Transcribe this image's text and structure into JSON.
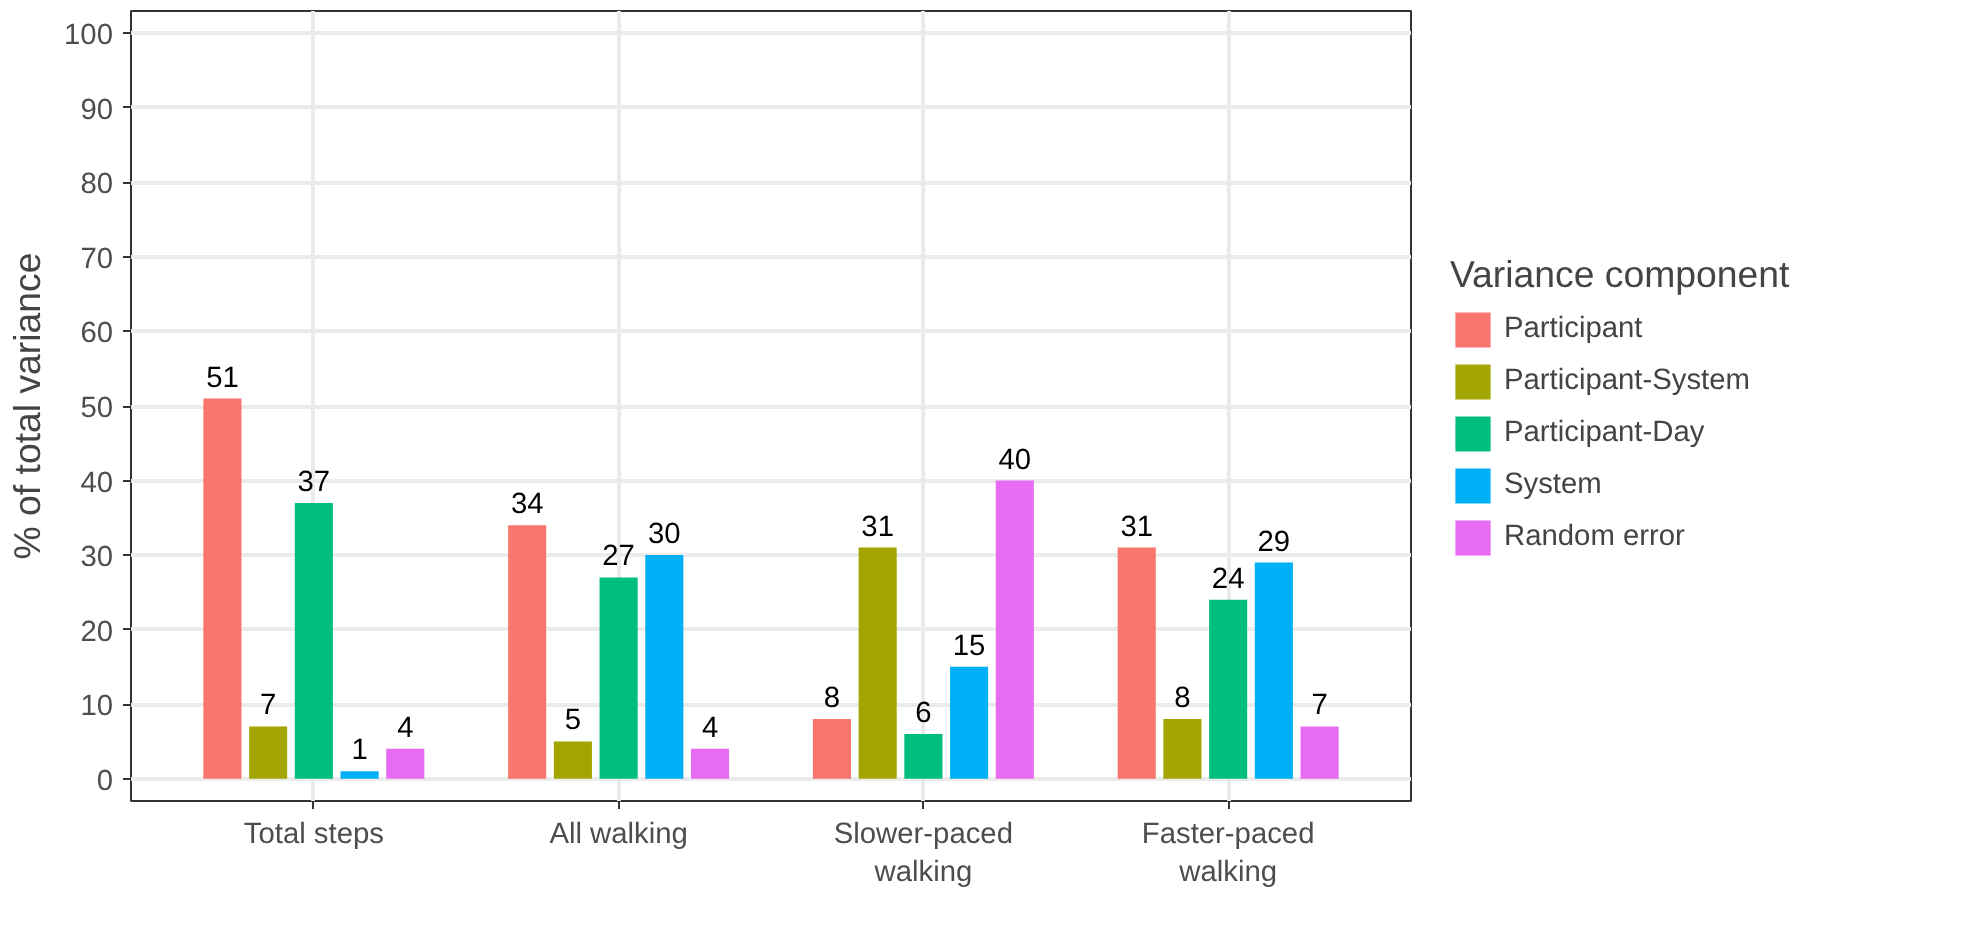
{
  "chart_data": {
    "type": "bar",
    "ylabel": "% of total variance",
    "legend_title": "Variance component",
    "categories": [
      "Total steps",
      "All walking",
      "Slower-paced\nwalking",
      "Faster-paced\nwalking"
    ],
    "series": [
      {
        "name": "Participant",
        "color": "#f8766d",
        "values": [
          51,
          34,
          8,
          31
        ]
      },
      {
        "name": "Participant-System",
        "color": "#a3a500",
        "values": [
          7,
          5,
          31,
          8
        ]
      },
      {
        "name": "Participant-Day",
        "color": "#00bf7d",
        "values": [
          37,
          27,
          6,
          24
        ]
      },
      {
        "name": "System",
        "color": "#00b0f6",
        "values": [
          1,
          30,
          15,
          29
        ]
      },
      {
        "name": "Random error",
        "color": "#e76bf3",
        "values": [
          4,
          4,
          40,
          7
        ]
      }
    ],
    "ylim": [
      -3,
      103
    ],
    "yticks": [
      0,
      10,
      20,
      30,
      40,
      50,
      60,
      70,
      80,
      90,
      100
    ],
    "grid": true,
    "legend": "right",
    "data_labels": true
  }
}
